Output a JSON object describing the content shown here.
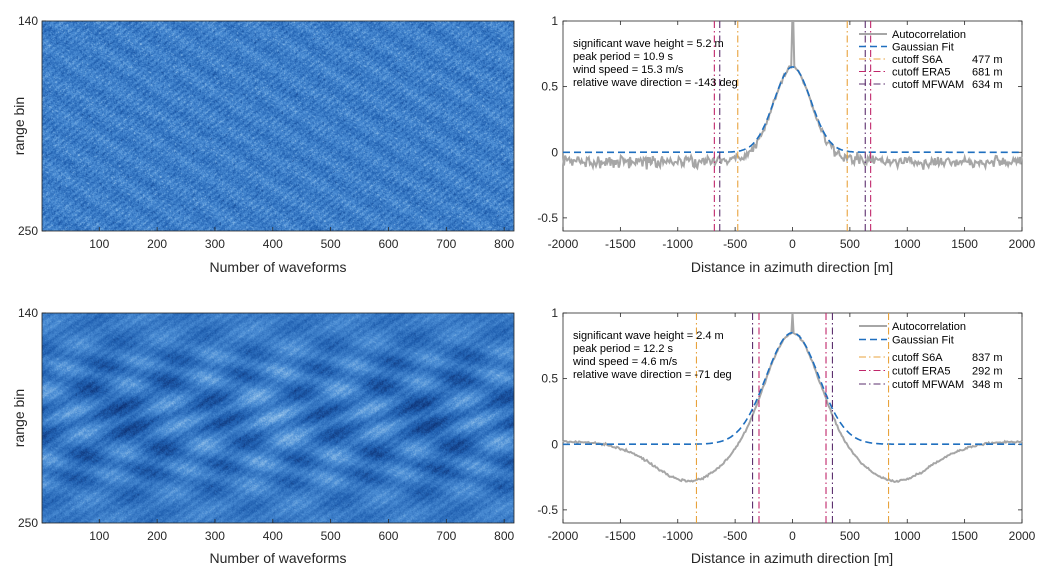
{
  "chart_data": [
    {
      "type": "heatmap",
      "panel": "top-left",
      "xlabel": "Number of waveforms",
      "ylabel": "range bin",
      "xlim": [
        1,
        817
      ],
      "ylim": [
        140,
        250
      ],
      "xticks": [
        100,
        200,
        300,
        400,
        500,
        600,
        700,
        800
      ],
      "yticks": [
        140,
        250
      ],
      "colormap": [
        "#0a2a6b",
        "#1f5fb0",
        "#4d8fd6",
        "#a8d0f0",
        "#e8f4ff"
      ],
      "texture": "fine speckle"
    },
    {
      "type": "line",
      "panel": "top-right",
      "xlabel": "Distance in azimuth direction [m]",
      "ylabel": "",
      "xlim": [
        -2000,
        2000
      ],
      "ylim": [
        -0.6,
        1
      ],
      "xticks": [
        -2000,
        -1500,
        -1000,
        -500,
        0,
        500,
        1000,
        1500,
        2000
      ],
      "yticks": [
        -0.5,
        0,
        0.5,
        1
      ],
      "annotations": [
        "significant wave height = 5.2 m",
        "peak period = 10.9 s",
        "wind speed = 15.3 m/s",
        "relative wave direction = -143 deg"
      ],
      "legend_position": "top-right",
      "series": [
        {
          "name": "Autocorrelation",
          "color": "#a6a6a6",
          "style": "solid",
          "peak": 1.0,
          "fit_amp": 0.65,
          "fit_sigma": 160,
          "tail_mean": -0.07,
          "noise": 0.045
        },
        {
          "name": "Gaussian Fit",
          "color": "#1f6fbf",
          "style": "dashed",
          "amp": 0.65,
          "sigma": 160,
          "offset": 0.0
        }
      ],
      "cutoffs": [
        {
          "name": "cutoff S6A",
          "value_label": "477 m",
          "x": 477,
          "color": "#e8a33d",
          "style": "dashdot"
        },
        {
          "name": "cutoff ERA5",
          "value_label": "681 m",
          "x": 681,
          "color": "#c0266a",
          "style": "dashdot"
        },
        {
          "name": "cutoff MFWAM",
          "value_label": "634 m",
          "x": 634,
          "color": "#5b2f6e",
          "style": "dashdot"
        }
      ]
    },
    {
      "type": "heatmap",
      "panel": "bottom-left",
      "xlabel": "Number of waveforms",
      "ylabel": "range bin",
      "xlim": [
        1,
        817
      ],
      "ylim": [
        140,
        250
      ],
      "xticks": [
        100,
        200,
        300,
        400,
        500,
        600,
        700,
        800
      ],
      "yticks": [
        140,
        250
      ],
      "colormap": [
        "#0a2a6b",
        "#1f5fb0",
        "#4d8fd6",
        "#a8d0f0",
        "#e8f4ff"
      ],
      "texture": "wavy large-scale pattern"
    },
    {
      "type": "line",
      "panel": "bottom-right",
      "xlabel": "Distance in azimuth direction [m]",
      "ylabel": "",
      "xlim": [
        -2000,
        2000
      ],
      "ylim": [
        -0.6,
        1
      ],
      "xticks": [
        -2000,
        -1500,
        -1000,
        -500,
        0,
        500,
        1000,
        1500,
        2000
      ],
      "yticks": [
        -0.5,
        0,
        0.5,
        1
      ],
      "annotations": [
        "significant wave height = 2.4 m",
        "peak period = 12.2 s",
        "wind speed = 4.6 m/s",
        "relative wave direction = -71 deg"
      ],
      "legend_position": "top-right",
      "series": [
        {
          "name": "Autocorrelation",
          "color": "#a6a6a6",
          "style": "solid",
          "peak": 1.0,
          "fit_amp": 0.85,
          "fit_sigma": 230,
          "trough_x": 900,
          "trough_y": -0.28,
          "tail_y": 0.02,
          "noise": 0.008
        },
        {
          "name": "Gaussian Fit",
          "color": "#1f6fbf",
          "style": "dashed",
          "amp": 0.85,
          "sigma": 230,
          "offset": 0.0
        }
      ],
      "cutoffs": [
        {
          "name": "cutoff S6A",
          "value_label": "837 m",
          "x": 837,
          "color": "#e8a33d",
          "style": "dashdot"
        },
        {
          "name": "cutoff ERA5",
          "value_label": "292 m",
          "x": 292,
          "color": "#c0266a",
          "style": "dashdot"
        },
        {
          "name": "cutoff MFWAM",
          "value_label": "348 m",
          "x": 348,
          "color": "#5b2f6e",
          "style": "dashdot"
        }
      ]
    }
  ]
}
